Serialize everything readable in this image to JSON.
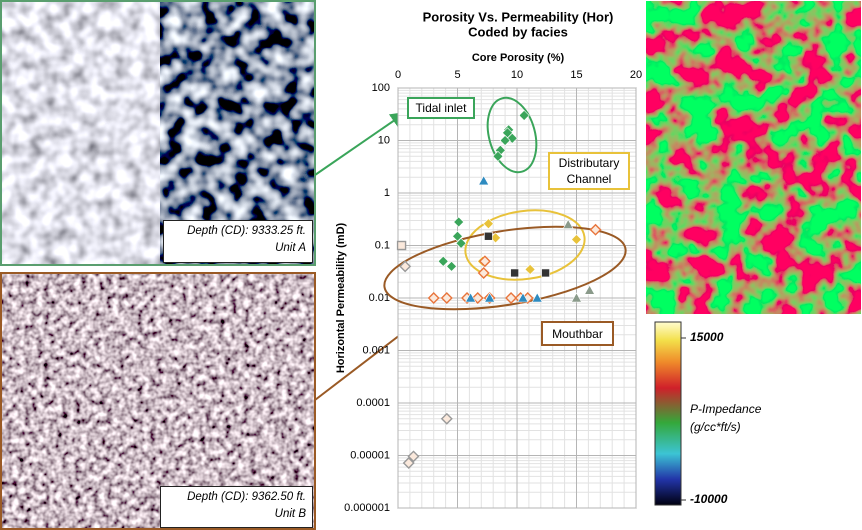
{
  "chart_data": {
    "type": "scatter",
    "title": "Porosity Vs. Permeability (Hor)",
    "subtitle": "Coded by facies",
    "xlabel": "Core Porosity (%)",
    "ylabel": "Horizontal Permeability (mD)",
    "xlim": [
      0,
      20
    ],
    "xticks": [
      0,
      5,
      10,
      15,
      20
    ],
    "ylim": [
      1e-06,
      100
    ],
    "yticks": [
      100,
      10,
      1,
      0.1,
      0.01,
      0.001,
      0.0001,
      1e-05,
      1e-06
    ],
    "yscale": "log",
    "grid": true,
    "minor_grid": true,
    "series": [
      {
        "color": "#3aa55a",
        "marker": "diamond",
        "filled": true,
        "x": [
          10.6,
          9.3,
          9.2,
          9.6,
          9.0,
          8.6,
          8.4,
          5.1,
          5.0,
          5.3,
          3.8,
          4.5
        ],
        "values": [
          30,
          16,
          14,
          11,
          10,
          6.5,
          5,
          0.28,
          0.15,
          0.11,
          0.05,
          0.04
        ]
      },
      {
        "color": "#e8c23a",
        "marker": "diamond",
        "filled": true,
        "x": [
          7.6,
          8.2,
          7.1,
          11.1,
          15.0
        ],
        "values": [
          0.26,
          0.14,
          0.05,
          0.035,
          0.13
        ]
      },
      {
        "color": "#e8743b",
        "marker": "diamond",
        "filled": false,
        "x": [
          3.0,
          4.1,
          5.8,
          6.7,
          7.7,
          9.5,
          10.3,
          10.9,
          7.3,
          7.2,
          16.6
        ],
        "values": [
          0.01,
          0.01,
          0.01,
          0.01,
          0.01,
          0.01,
          0.01,
          0.01,
          0.05,
          0.03,
          0.2
        ]
      },
      {
        "color": "#2e8bc0",
        "marker": "triangle",
        "filled": true,
        "x": [
          7.2,
          6.1,
          7.7,
          10.5,
          11.7
        ],
        "values": [
          1.7,
          0.01,
          0.01,
          0.01,
          0.01
        ]
      },
      {
        "color": "#8a9a8a",
        "marker": "triangle",
        "filled": true,
        "x": [
          14.3,
          15.0,
          16.1
        ],
        "values": [
          0.25,
          0.01,
          0.014
        ]
      },
      {
        "color": "#333333",
        "marker": "square",
        "filled": true,
        "x": [
          7.6,
          9.8,
          12.4
        ],
        "values": [
          0.15,
          0.03,
          0.03
        ]
      },
      {
        "color": "#999999",
        "marker": "square",
        "filled": false,
        "x": [
          0.3
        ],
        "values": [
          0.1
        ]
      },
      {
        "color": "#999999",
        "marker": "diamond",
        "filled": false,
        "x": [
          0.6,
          4.1,
          0.9,
          1.3
        ],
        "values": [
          0.04,
          5e-05,
          7.2e-06,
          9.6e-06
        ]
      }
    ],
    "annotations": [
      {
        "text": "Tidal inlet",
        "color": "#3aa55a"
      },
      {
        "text": "Distributary Channel",
        "color": "#e8c23a"
      },
      {
        "text": "Mouthbar",
        "color": "#9a5a25"
      }
    ]
  },
  "images": [
    {
      "caption": "Depth (CD): 9333.25 ft.",
      "unit": "Unit A"
    },
    {
      "caption": "Depth (CD): 9362.50 ft.",
      "unit": "Unit B"
    }
  ],
  "colorbar": {
    "lim": [
      -10000,
      15000
    ],
    "ticks": [
      15000,
      -10000
    ],
    "label": "P-Impedance",
    "units": "(g/cc*ft/s)"
  }
}
